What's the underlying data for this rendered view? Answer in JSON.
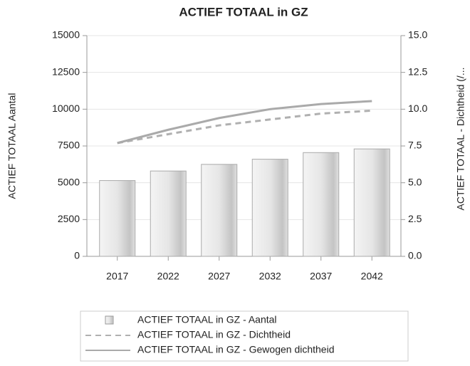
{
  "chart_data": {
    "type": "combo",
    "title": "ACTIEF TOTAAL in GZ",
    "ylabel": "ACTIEF TOTAAL Aantal",
    "y2label": "ACTIEF TOTAAL - Dichtheid (/...",
    "categories": [
      "2017",
      "2022",
      "2027",
      "2032",
      "2037",
      "2042"
    ],
    "series": [
      {
        "name": "ACTIEF TOTAAL in GZ - Aantal",
        "type": "bar",
        "axis": "y",
        "color": "#d6d6d6",
        "values": [
          5150,
          5800,
          6250,
          6600,
          7050,
          7300
        ]
      },
      {
        "name": "ACTIEF TOTAAL in GZ - Dichtheid",
        "type": "line",
        "axis": "y2",
        "dashed": true,
        "color": "#b0b0b0",
        "values": [
          7.7,
          8.3,
          8.9,
          9.3,
          9.7,
          9.9
        ]
      },
      {
        "name": "ACTIEF TOTAAL in GZ - Gewogen dichtheid",
        "type": "line",
        "axis": "y2",
        "dashed": false,
        "color": "#aaaaaa",
        "values": [
          7.7,
          8.6,
          9.4,
          10.0,
          10.35,
          10.55
        ]
      }
    ],
    "ylim": [
      0,
      15000
    ],
    "yticks": [
      0,
      2500,
      5000,
      7500,
      10000,
      12500,
      15000
    ],
    "y2lim": [
      0,
      15
    ],
    "y2ticks": [
      {
        "value": 0,
        "label": "0.0"
      },
      2.5,
      {
        "value": 5,
        "label": "5.0"
      },
      7.5,
      {
        "value": 10,
        "label": "10.0"
      },
      12.5,
      {
        "value": 15,
        "label": "15.0"
      }
    ],
    "grid": true
  }
}
